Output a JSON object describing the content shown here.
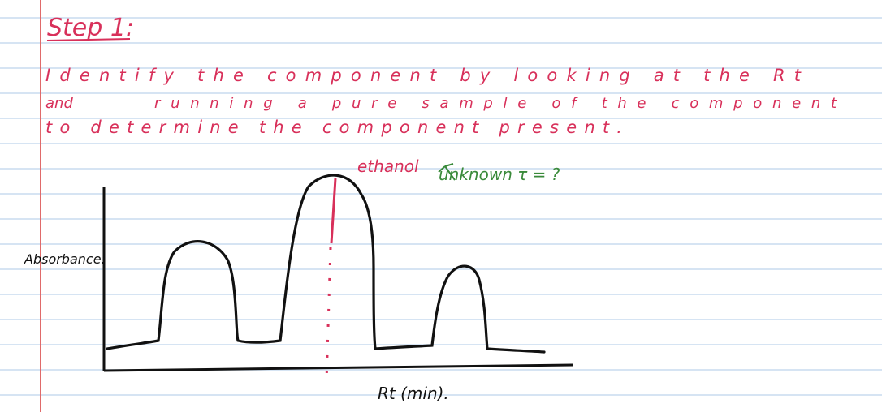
{
  "notes": {
    "heading": "Step 1:",
    "line1": "Identify the component by looking at the Rt",
    "line2_left": "and",
    "line2_between": "running a pure sample of the component",
    "line3": "to determine the component present.",
    "annotation_label": "ethanol",
    "annotation_text": "unknown τ = ?"
  },
  "chart_data": {
    "type": "line",
    "title": "",
    "xlabel": "Rt (min).",
    "ylabel": "Absorbance.",
    "series": [
      {
        "name": "",
        "description_points": [
          {
            "x": 0.0,
            "y": 0.05
          },
          {
            "x": 0.13,
            "y": 0.7
          },
          {
            "x": 0.28,
            "y": 0.1
          },
          {
            "x": 0.46,
            "y": 1.0
          },
          {
            "x": 0.63,
            "y": 0.08
          },
          {
            "x": 0.77,
            "y": 0.55
          },
          {
            "x": 0.93,
            "y": 0.06
          }
        ]
      }
    ]
  },
  "colors": {
    "ink_red": "#d8305a",
    "ink_green": "#3a8a3a",
    "ink_black": "#111111",
    "rule_blue": "#c9dcef",
    "margin_red": "#e06a6a"
  }
}
